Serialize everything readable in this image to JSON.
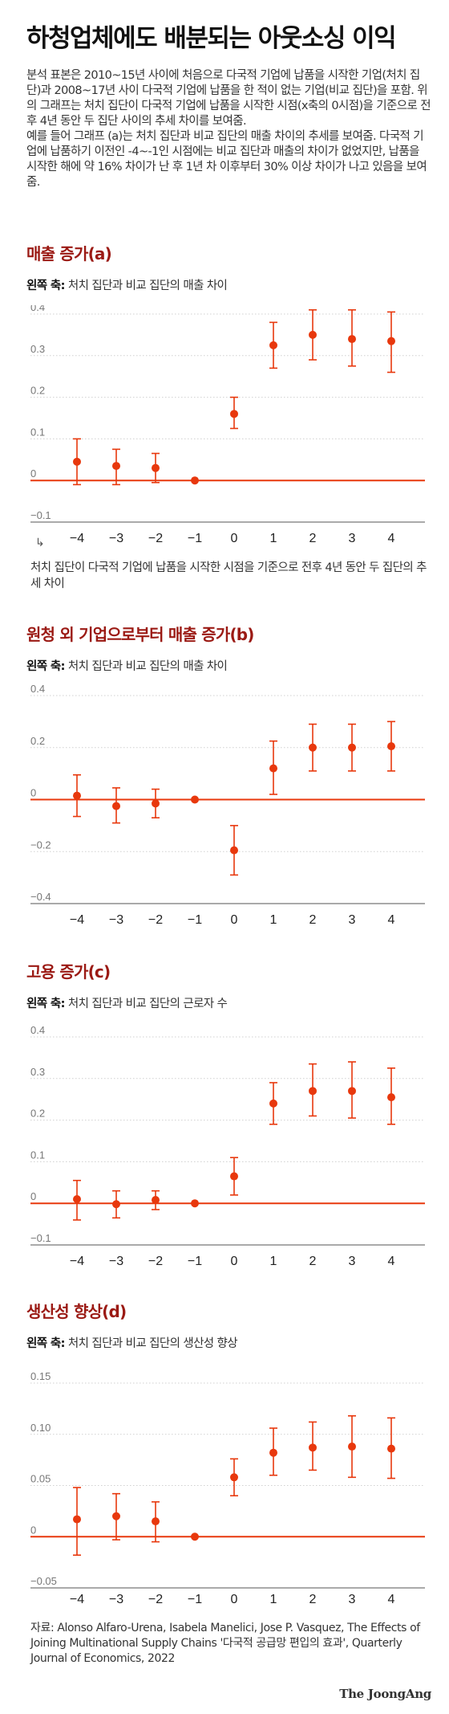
{
  "headline": "하청업체에도 배분되는 아웃소싱 이익",
  "intro": {
    "p1": "분석 표본은 2010~15년 사이에 처음으로 다국적 기업에 납품을 시작한 기업(처치 집단)과 2008~17년 사이 다국적 기업에 납품을 한 적이 없는 기업(비교 집단)을 포함. 위의 그래프는 처치 집단이 다국적 기업에 납품을 시작한 시점(x축의 0시점)을 기준으로 전후 4년 동안 두 집단 사이의 추세 차이를 보여줌.",
    "p2": "예를 들어 그래프 (a)는 처치 집단과 비교 집단의 매출 차이의 추세를 보여줌. 다국적 기업에 납품하기 이전인 -4~-1인 시점에는 비교 집단과 매출의 차이가 없었지만, 납품을 시작한 해에 약 16% 차이가 난 후 1년 차 이후부터 30% 이상 차이가 나고 있음을 보여줌."
  },
  "axis_prefix": "왼쪽 축:",
  "caption_a": "처치 집단이 다국적 기업에 납품을 시작한 시점을 기준으로 전후 4년 동안 두 집단의 추세 차이",
  "source": "자료: Alonso Alfaro-Urena, Isabela Manelici, Jose P. Vasquez, The Effects of Joining Multinational Supply Chains '다국적 공급망 편입의 효과', Quarterly Journal of Economics, 2022",
  "brand": "The JoongAng",
  "colors": {
    "accent": "#e8380d",
    "title_red": "#9b1a14",
    "grid": "#d0d0d0"
  },
  "icons": {
    "arrow": "corner-arrow-icon"
  },
  "chart_data": [
    {
      "id": "a",
      "type": "scatter",
      "title": "매출 증가(a)",
      "ylabel": "처치 집단과 비교 집단의 매출 차이",
      "x": [
        -4,
        -3,
        -2,
        -1,
        0,
        1,
        2,
        3,
        4
      ],
      "xticks": [
        "−4",
        "−3",
        "−2",
        "−1",
        "0",
        "1",
        "2",
        "3",
        "4"
      ],
      "y": [
        0.045,
        0.035,
        0.03,
        0.0,
        0.16,
        0.325,
        0.35,
        0.34,
        0.335
      ],
      "ci_low": [
        -0.01,
        -0.01,
        -0.005,
        0.0,
        0.125,
        0.27,
        0.29,
        0.275,
        0.26
      ],
      "ci_high": [
        0.1,
        0.075,
        0.065,
        0.0,
        0.2,
        0.38,
        0.41,
        0.41,
        0.405
      ],
      "ylim": [
        -0.1,
        0.4
      ],
      "yticks": [
        -0.1,
        0,
        0.1,
        0.2,
        0.3,
        0.4
      ],
      "yticklabels": [
        "−0.1",
        "0",
        "0.1",
        "0.2",
        "0.3",
        "0.4"
      ],
      "grid": true
    },
    {
      "id": "b",
      "type": "scatter",
      "title": "원청 외 기업으로부터 매출 증가(b)",
      "ylabel": "처치 집단과 비교 집단의 매출 차이",
      "x": [
        -4,
        -3,
        -2,
        -1,
        0,
        1,
        2,
        3,
        4
      ],
      "xticks": [
        "−4",
        "−3",
        "−2",
        "−1",
        "0",
        "1",
        "2",
        "3",
        "4"
      ],
      "y": [
        0.015,
        -0.025,
        -0.015,
        0.0,
        -0.195,
        0.12,
        0.2,
        0.2,
        0.205
      ],
      "ci_low": [
        -0.065,
        -0.09,
        -0.07,
        0.0,
        -0.29,
        0.02,
        0.11,
        0.11,
        0.11
      ],
      "ci_high": [
        0.095,
        0.045,
        0.04,
        0.0,
        -0.1,
        0.225,
        0.29,
        0.29,
        0.3
      ],
      "ylim": [
        -0.4,
        0.4
      ],
      "yticks": [
        -0.4,
        -0.2,
        0,
        0.2,
        0.4
      ],
      "yticklabels": [
        "−0.4",
        "−0.2",
        "0",
        "0.2",
        "0.4"
      ],
      "grid": true
    },
    {
      "id": "c",
      "type": "scatter",
      "title": "고용 증가(c)",
      "ylabel": "처치 집단과 비교 집단의 근로자 수",
      "x": [
        -4,
        -3,
        -2,
        -1,
        0,
        1,
        2,
        3,
        4
      ],
      "xticks": [
        "−4",
        "−3",
        "−2",
        "−1",
        "0",
        "1",
        "2",
        "3",
        "4"
      ],
      "y": [
        0.01,
        -0.002,
        0.008,
        0.0,
        0.065,
        0.24,
        0.27,
        0.27,
        0.255
      ],
      "ci_low": [
        -0.04,
        -0.035,
        -0.015,
        0.0,
        0.02,
        0.19,
        0.21,
        0.205,
        0.19
      ],
      "ci_high": [
        0.055,
        0.03,
        0.03,
        0.0,
        0.11,
        0.29,
        0.335,
        0.34,
        0.325
      ],
      "ylim": [
        -0.1,
        0.4
      ],
      "yticks": [
        -0.1,
        0,
        0.1,
        0.2,
        0.3,
        0.4
      ],
      "yticklabels": [
        "−0.1",
        "0",
        "0.1",
        "0.2",
        "0.3",
        "0.4"
      ],
      "grid": true
    },
    {
      "id": "d",
      "type": "scatter",
      "title": "생산성 향상(d)",
      "ylabel": "처치 집단과 비교 집단의 생산성 향상",
      "x": [
        -4,
        -3,
        -2,
        -1,
        0,
        1,
        2,
        3,
        4
      ],
      "xticks": [
        "−4",
        "−3",
        "−2",
        "−1",
        "0",
        "1",
        "2",
        "3",
        "4"
      ],
      "y": [
        0.017,
        0.02,
        0.015,
        0.0,
        0.058,
        0.082,
        0.087,
        0.088,
        0.086
      ],
      "ci_low": [
        -0.018,
        -0.003,
        -0.005,
        0.0,
        0.04,
        0.06,
        0.065,
        0.058,
        0.057
      ],
      "ci_high": [
        0.048,
        0.042,
        0.034,
        0.0,
        0.076,
        0.106,
        0.112,
        0.118,
        0.116
      ],
      "ylim": [
        -0.05,
        0.15
      ],
      "yticks": [
        -0.05,
        0,
        0.05,
        0.1,
        0.15
      ],
      "yticklabels": [
        "−0.05",
        "0",
        "0.05",
        "0.10",
        "0.15"
      ],
      "grid": true
    }
  ]
}
